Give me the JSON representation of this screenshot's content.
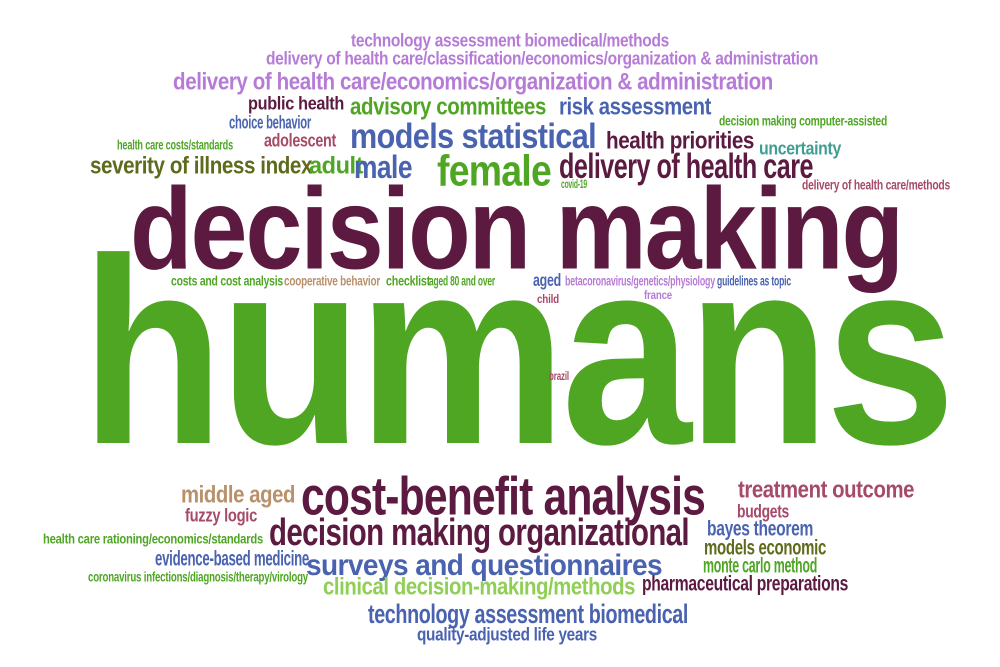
{
  "palette": {
    "maroon": "#5c1a40",
    "green": "#4ea623",
    "purple": "#b57bd6",
    "blue": "#4a63b0",
    "olive": "#5f6a1c",
    "rose": "#a64a68",
    "tan": "#b8916b",
    "lightgreen": "#8fcf56",
    "teal": "#3f9e92"
  },
  "words": [
    {
      "text": "technology assessment biomedical/methods",
      "color": "#b57bd6"
    },
    {
      "text": "delivery of health care/classification/economics/organization & administration",
      "color": "#b57bd6"
    },
    {
      "text": "delivery of health care/economics/organization & administration",
      "color": "#b57bd6"
    },
    {
      "text": "public health",
      "color": "#5c1a40"
    },
    {
      "text": "advisory committees",
      "color": "#4ea623"
    },
    {
      "text": "risk assessment",
      "color": "#4a63b0"
    },
    {
      "text": "choice behavior",
      "color": "#4a63b0"
    },
    {
      "text": "adolescent",
      "color": "#a64a68"
    },
    {
      "text": "models statistical",
      "color": "#4a63b0"
    },
    {
      "text": "health priorities",
      "color": "#5c1a40"
    },
    {
      "text": "uncertainty",
      "color": "#3f9e92"
    },
    {
      "text": "decision making computer-assisted",
      "color": "#4ea623"
    },
    {
      "text": "health care costs/standards",
      "color": "#4ea623"
    },
    {
      "text": "severity of illness index",
      "color": "#5f6a1c"
    },
    {
      "text": "adult",
      "color": "#4ea623"
    },
    {
      "text": "male",
      "color": "#4a63b0"
    },
    {
      "text": "female",
      "color": "#4ea623"
    },
    {
      "text": "delivery of health care",
      "color": "#5c1a40"
    },
    {
      "text": "covid-19",
      "color": "#4ea623"
    },
    {
      "text": "delivery of health care/methods",
      "color": "#a64a68"
    },
    {
      "text": "decision making",
      "color": "#5c1a40"
    },
    {
      "text": "costs and cost analysis",
      "color": "#4ea623"
    },
    {
      "text": "cooperative behavior",
      "color": "#b8916b"
    },
    {
      "text": "checklist",
      "color": "#4ea623"
    },
    {
      "text": "aged 80 and over",
      "color": "#4ea623"
    },
    {
      "text": "aged",
      "color": "#4a63b0"
    },
    {
      "text": "betacoronavirus/genetics/physiology",
      "color": "#b57bd6"
    },
    {
      "text": "guidelines as topic",
      "color": "#4a63b0"
    },
    {
      "text": "child",
      "color": "#a64a68"
    },
    {
      "text": "france",
      "color": "#b57bd6"
    },
    {
      "text": "humans",
      "color": "#4ea623"
    },
    {
      "text": "brazil",
      "color": "#a64a68"
    },
    {
      "text": "middle aged",
      "color": "#b8916b"
    },
    {
      "text": "cost-benefit analysis",
      "color": "#5c1a40"
    },
    {
      "text": "treatment outcome",
      "color": "#a64a68"
    },
    {
      "text": "fuzzy logic",
      "color": "#a64a68"
    },
    {
      "text": "budgets",
      "color": "#a64a68"
    },
    {
      "text": "decision making organizational",
      "color": "#5c1a40"
    },
    {
      "text": "bayes theorem",
      "color": "#4a63b0"
    },
    {
      "text": "health care rationing/economics/standards",
      "color": "#4ea623"
    },
    {
      "text": "evidence-based medicine",
      "color": "#4a63b0"
    },
    {
      "text": "models economic",
      "color": "#5f6a1c"
    },
    {
      "text": "surveys and questionnaires",
      "color": "#4a63b0"
    },
    {
      "text": "monte carlo method",
      "color": "#4ea623"
    },
    {
      "text": "coronavirus infections/diagnosis/therapy/virology",
      "color": "#4ea623"
    },
    {
      "text": "clinical decision-making/methods",
      "color": "#8fcf56"
    },
    {
      "text": "pharmaceutical preparations",
      "color": "#5c1a40"
    },
    {
      "text": "technology assessment biomedical",
      "color": "#4a63b0"
    },
    {
      "text": "quality-adjusted life years",
      "color": "#4a63b0"
    }
  ]
}
